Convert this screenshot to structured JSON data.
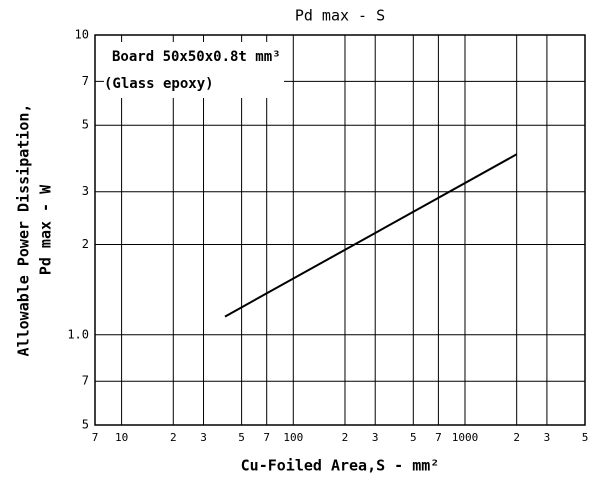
{
  "chart_data": {
    "type": "line",
    "title": "Pd max - S",
    "xlabel": "Cu-Foiled Area,S - mm²",
    "ylabel": [
      "Allowable Power Dissipation,",
      "Pd max - W"
    ],
    "annotations": [
      "Board 50x50x0.8t mm³",
      "(Glass epoxy)"
    ],
    "x": [
      40,
      2000
    ],
    "series": [
      {
        "color": "#000000",
        "values": [
          1.15,
          4.0
        ]
      }
    ],
    "xscale": "log",
    "yscale": "log",
    "grid": true,
    "xlim": [
      7,
      5000
    ],
    "xticks": [
      7,
      10,
      {
        "value": 20,
        "label": "2"
      },
      {
        "value": 30,
        "label": "3"
      },
      {
        "value": 50,
        "label": "5"
      },
      {
        "value": 70,
        "label": "7"
      },
      100,
      {
        "value": 200,
        "label": "2"
      },
      {
        "value": 300,
        "label": "3"
      },
      {
        "value": 500,
        "label": "5"
      },
      {
        "value": 700,
        "label": "7"
      },
      1000,
      {
        "value": 2000,
        "label": "2"
      },
      {
        "value": 3000,
        "label": "3"
      },
      {
        "value": 5000,
        "label": "5"
      }
    ],
    "ylim": [
      0.5,
      10
    ],
    "yticks": [
      {
        "value": 0.5,
        "label": "5"
      },
      {
        "value": 0.7,
        "label": "7"
      },
      {
        "value": 1,
        "label": "1.0"
      },
      2,
      3,
      5,
      7,
      10
    ]
  }
}
